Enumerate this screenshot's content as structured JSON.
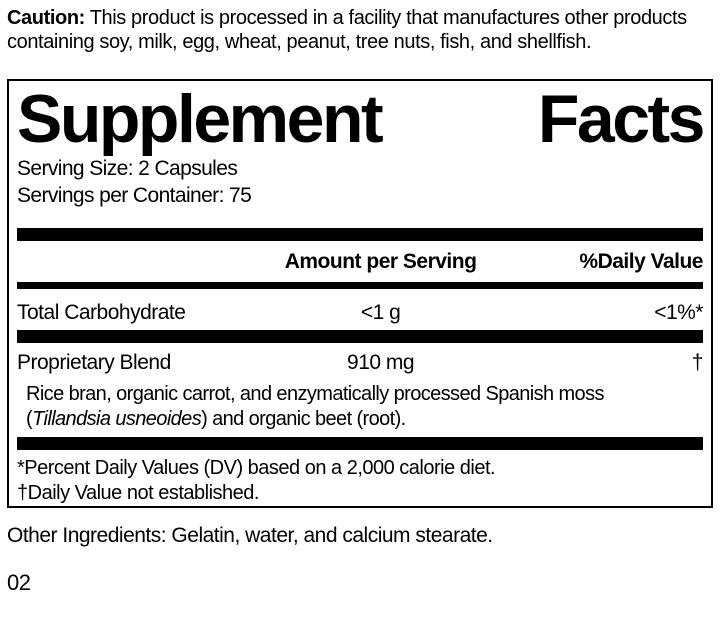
{
  "colors": {
    "ink": "#000000",
    "background": "#ffffff"
  },
  "caution": {
    "label": "Caution:",
    "text": " This product is processed in a facility that manufactures other products containing soy, milk, egg, wheat, peanut, tree nuts, fish, and shellfish."
  },
  "panel": {
    "title_left": "Supplement",
    "title_right": "Facts",
    "serving_size": "Serving Size: 2 Capsules",
    "servings_per_container": "Servings per Container: 75",
    "columns": {
      "amount": "Amount per Serving",
      "daily_value": "%Daily Value"
    },
    "rows": [
      {
        "name": "Total Carbohydrate",
        "amount": "<1 g",
        "dv": "<1%*"
      },
      {
        "name": "Proprietary Blend",
        "amount": "910 mg",
        "dv": "†"
      }
    ],
    "blend_description": {
      "pre": "Rice bran, organic carrot, and enzymatically processed Spanish moss (",
      "italic": "Tillandsia usneoides",
      "post": ") and organic beet (root)."
    },
    "footnotes": [
      "*Percent Daily Values (DV) based on a 2,000 calorie diet.",
      "†Daily Value not established."
    ]
  },
  "other_ingredients": "Other Ingredients: Gelatin, water, and calcium stearate.",
  "code": "02"
}
